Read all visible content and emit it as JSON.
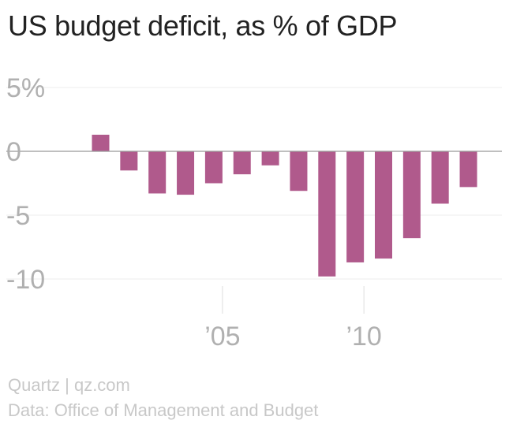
{
  "chart_data": {
    "type": "bar",
    "title": "US budget deficit, as % of GDP",
    "xlabel": "",
    "ylabel": "",
    "categories": [
      "2001",
      "2002",
      "2003",
      "2004",
      "2005",
      "2006",
      "2007",
      "2008",
      "2009",
      "2010",
      "2011",
      "2012",
      "2013",
      "2014"
    ],
    "values": [
      1.3,
      -1.5,
      -3.3,
      -3.4,
      -2.5,
      -1.8,
      -1.1,
      -3.1,
      -9.8,
      -8.7,
      -8.4,
      -6.8,
      -4.1,
      -2.8
    ],
    "ylim": [
      -10,
      5
    ],
    "yticks": [
      {
        "value": 5,
        "label": "5%"
      },
      {
        "value": 0,
        "label": "0"
      },
      {
        "value": -5,
        "label": "-5"
      },
      {
        "value": -10,
        "label": "-10"
      }
    ],
    "xticks": [
      {
        "category": "2005",
        "label": "’05"
      },
      {
        "category": "2010",
        "label": "’10"
      }
    ],
    "grid": true,
    "bar_color": "#b05a8c",
    "axis_color": "#999999"
  },
  "footer": {
    "brand": "Quartz | qz.com",
    "source": "Data: Office of Management and Budget"
  }
}
